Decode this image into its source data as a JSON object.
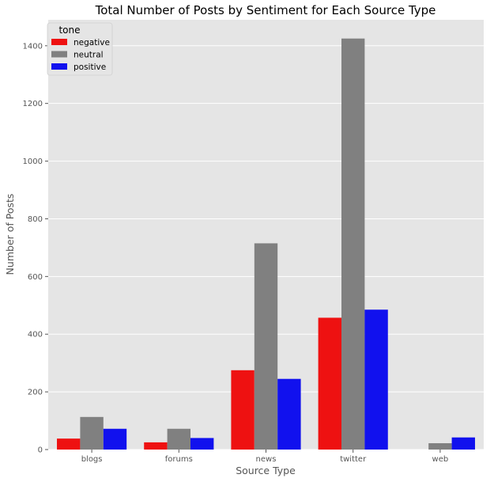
{
  "chart_data": {
    "type": "bar",
    "title": "Total Number of Posts by Sentiment for Each Source Type",
    "xlabel": "Source Type",
    "ylabel": "Number of Posts",
    "categories": [
      "blogs",
      "forums",
      "news",
      "twitter",
      "web"
    ],
    "series": [
      {
        "name": "negative",
        "color": "#ee1111",
        "values": [
          38,
          25,
          275,
          457,
          null
        ]
      },
      {
        "name": "neutral",
        "color": "#808080",
        "values": [
          113,
          72,
          715,
          1425,
          22
        ]
      },
      {
        "name": "positive",
        "color": "#1111ee",
        "values": [
          72,
          40,
          245,
          485,
          42
        ]
      }
    ],
    "ylim": [
      0,
      1490
    ],
    "yticks": [
      0,
      200,
      400,
      600,
      800,
      1000,
      1200,
      1400
    ],
    "legend": {
      "title": "tone",
      "placement": "top-left"
    },
    "grid": true,
    "style": {
      "panel_background": "#e5e5e5",
      "grid_color": "#ffffff"
    }
  }
}
